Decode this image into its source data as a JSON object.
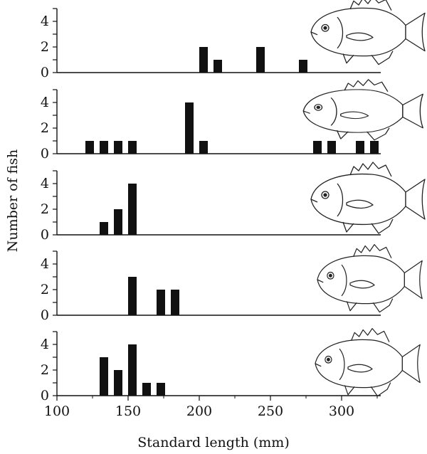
{
  "chart_data": {
    "type": "bar",
    "xlabel": "Standard length (mm)",
    "ylabel": "Number of fish",
    "xlim": [
      100,
      330
    ],
    "ylim": [
      0,
      5
    ],
    "x_ticks": [
      100,
      150,
      200,
      250,
      300
    ],
    "y_ticks": [
      0,
      2,
      4
    ],
    "bin_width_mm": 6,
    "bar_color": "#111111",
    "grid": false,
    "legend": "none",
    "panels": [
      {
        "illustration_icon": "crappie-fish-icon",
        "bars": [
          {
            "x": 203,
            "y": 2
          },
          {
            "x": 213,
            "y": 1
          },
          {
            "x": 243,
            "y": 2
          },
          {
            "x": 273,
            "y": 1
          }
        ]
      },
      {
        "illustration_icon": "largemouth-bass-fish-icon",
        "bars": [
          {
            "x": 123,
            "y": 1
          },
          {
            "x": 133,
            "y": 1
          },
          {
            "x": 143,
            "y": 1
          },
          {
            "x": 153,
            "y": 1
          },
          {
            "x": 193,
            "y": 4
          },
          {
            "x": 203,
            "y": 1
          },
          {
            "x": 283,
            "y": 1
          },
          {
            "x": 293,
            "y": 1
          },
          {
            "x": 313,
            "y": 1
          },
          {
            "x": 323,
            "y": 1
          }
        ]
      },
      {
        "illustration_icon": "sunfish-fish-icon",
        "bars": [
          {
            "x": 133,
            "y": 1
          },
          {
            "x": 143,
            "y": 2
          },
          {
            "x": 153,
            "y": 4
          }
        ]
      },
      {
        "illustration_icon": "bluegill-fish-icon",
        "bars": [
          {
            "x": 153,
            "y": 3
          },
          {
            "x": 173,
            "y": 2
          },
          {
            "x": 183,
            "y": 2
          }
        ]
      },
      {
        "illustration_icon": "pumpkinseed-fish-icon",
        "bars": [
          {
            "x": 133,
            "y": 3
          },
          {
            "x": 143,
            "y": 2
          },
          {
            "x": 153,
            "y": 4
          },
          {
            "x": 163,
            "y": 1
          },
          {
            "x": 173,
            "y": 1
          }
        ]
      }
    ]
  }
}
